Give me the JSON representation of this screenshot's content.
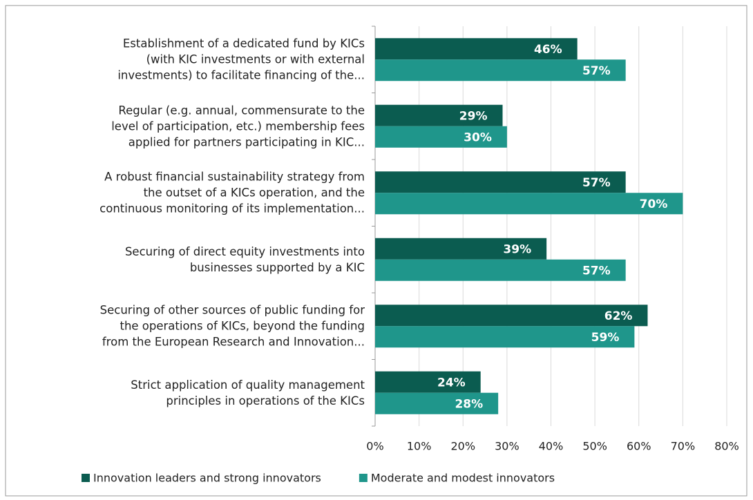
{
  "chart_data": {
    "type": "hbar",
    "categories": [
      "Establishment of a dedicated fund by KICs\n(with KIC investments or with external\ninvestments) to facilitate financing of the...",
      "Regular (e.g. annual, commensurate to the\nlevel of participation, etc.) membership fees\napplied for partners participating in KIC...",
      "A robust financial sustainability strategy from\nthe outset of a KICs operation, and the\ncontinuous monitoring of its implementation...",
      "Securing of direct equity investments into\nbusinesses supported by a KIC",
      "Securing of other sources of public funding for\nthe operations of KICs, beyond the funding\nfrom the European Research and Innovation...",
      "Strict application of quality management\nprinciples in operations of the KICs"
    ],
    "series": [
      {
        "name": "Innovation leaders and strong innovators",
        "color": "#0b5c50",
        "values": [
          46,
          29,
          57,
          39,
          62,
          24
        ],
        "value_labels": [
          "46%",
          "29%",
          "57%",
          "39%",
          "62%",
          "24%"
        ]
      },
      {
        "name": "Moderate and modest innovators",
        "color": "#1f968b",
        "values": [
          57,
          30,
          70,
          57,
          59,
          28
        ],
        "value_labels": [
          "57%",
          "30%",
          "70%",
          "57%",
          "59%",
          "28%"
        ]
      }
    ],
    "xlim": [
      0,
      80
    ],
    "xticks": [
      {
        "value": 0,
        "label": "0%"
      },
      {
        "value": 10,
        "label": "10%"
      },
      {
        "value": 20,
        "label": "20%"
      },
      {
        "value": 30,
        "label": "30%"
      },
      {
        "value": 40,
        "label": "40%"
      },
      {
        "value": 50,
        "label": "50%"
      },
      {
        "value": 60,
        "label": "60%"
      },
      {
        "value": 70,
        "label": "70%"
      },
      {
        "value": 80,
        "label": "80%"
      }
    ],
    "grid": true,
    "legend": "bottom"
  }
}
